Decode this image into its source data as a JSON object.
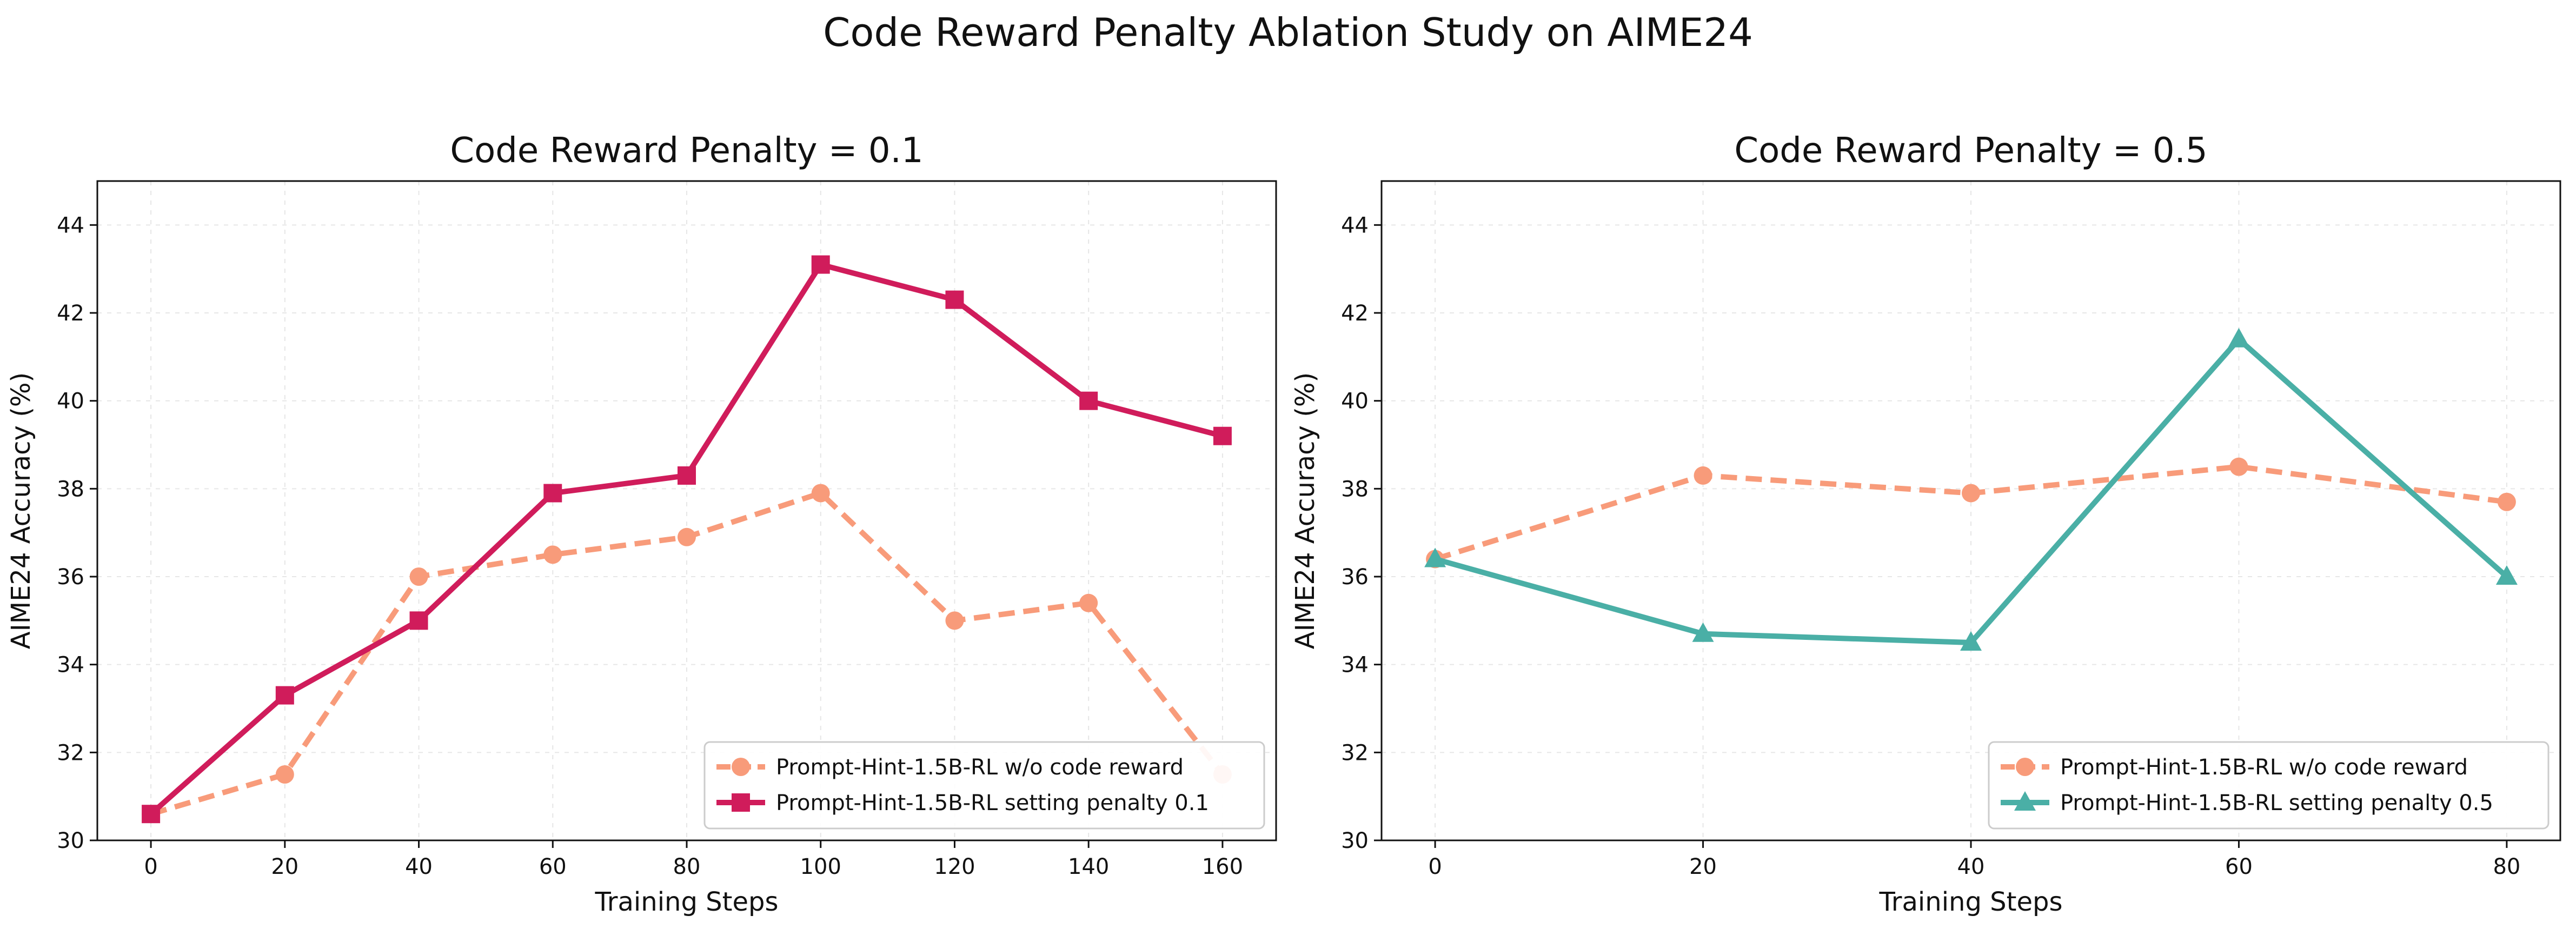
{
  "figure": {
    "title": "Code Reward Penalty Ablation Study on AIME24"
  },
  "chart_data": [
    {
      "type": "line",
      "title": "Code Reward Penalty = 0.1",
      "xlabel": "Training Steps",
      "ylabel": "AIME24 Accuracy (%)",
      "xlim": [
        -8,
        168
      ],
      "ylim": [
        30,
        45
      ],
      "xticks": [
        0,
        20,
        40,
        60,
        80,
        100,
        120,
        140,
        160
      ],
      "yticks": [
        30,
        32,
        34,
        36,
        38,
        40,
        42,
        44
      ],
      "grid": true,
      "legend_location": "lower-right",
      "series": [
        {
          "name": "Prompt-Hint-1.5B-RL w/o code reward",
          "color": "#f89b7a",
          "line_style": "dashed",
          "marker": "circle",
          "x": [
            0,
            20,
            40,
            60,
            80,
            100,
            120,
            140,
            160
          ],
          "values": [
            30.6,
            31.5,
            36.0,
            36.5,
            36.9,
            37.9,
            35.0,
            35.4,
            31.5
          ]
        },
        {
          "name": "Prompt-Hint-1.5B-RL setting penalty 0.1",
          "color": "#d01c5b",
          "line_style": "solid",
          "marker": "square",
          "x": [
            0,
            20,
            40,
            60,
            80,
            100,
            120,
            140,
            160
          ],
          "values": [
            30.6,
            33.3,
            35.0,
            37.9,
            38.3,
            43.1,
            42.3,
            40.0,
            39.2
          ]
        }
      ]
    },
    {
      "type": "line",
      "title": "Code Reward Penalty = 0.5",
      "xlabel": "Training Steps",
      "ylabel": "AIME24 Accuracy (%)",
      "xlim": [
        -4,
        84
      ],
      "ylim": [
        30,
        45
      ],
      "xticks": [
        0,
        20,
        40,
        60,
        80
      ],
      "yticks": [
        30,
        32,
        34,
        36,
        38,
        40,
        42,
        44
      ],
      "grid": true,
      "legend_location": "lower-right",
      "series": [
        {
          "name": "Prompt-Hint-1.5B-RL w/o code reward",
          "color": "#f89b7a",
          "line_style": "dashed",
          "marker": "circle",
          "x": [
            0,
            20,
            40,
            60,
            80
          ],
          "values": [
            36.4,
            38.3,
            37.9,
            38.5,
            37.7
          ]
        },
        {
          "name": "Prompt-Hint-1.5B-RL setting penalty 0.5",
          "color": "#4aafa6",
          "line_style": "solid",
          "marker": "triangle",
          "x": [
            0,
            20,
            40,
            60,
            80
          ],
          "values": [
            36.4,
            34.7,
            34.5,
            41.4,
            36.0
          ]
        }
      ]
    }
  ]
}
